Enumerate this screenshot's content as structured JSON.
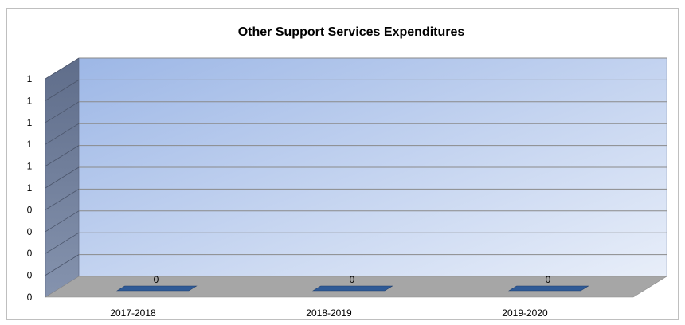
{
  "chart_data": {
    "type": "bar",
    "title": "Other Support  Services Expenditures",
    "categories": [
      "2017-2018",
      "2018-2019",
      "2019-2020"
    ],
    "values": [
      0,
      0,
      0
    ],
    "data_labels": [
      "0",
      "0",
      "0"
    ],
    "y_tick_labels": [
      "0",
      "0",
      "0",
      "0",
      "0",
      "1",
      "1",
      "1",
      "1",
      "1",
      "1"
    ],
    "xlabel": "",
    "ylabel": "",
    "ylim": [
      0,
      1
    ],
    "grid": true,
    "legend": "none",
    "style": "3d-column",
    "colors": {
      "bar": "#2f5a96",
      "wall_top": "#9db7e6",
      "wall_bottom": "#e8eef9",
      "side_wall": "#6e7c98",
      "floor": "#a6a6a6",
      "gridline": "#8a8a8a"
    }
  }
}
